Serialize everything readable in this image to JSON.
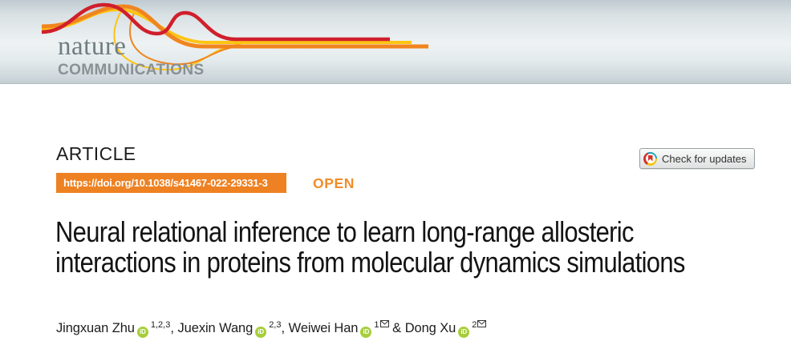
{
  "banner": {
    "nature": "nature",
    "communications": "COMMUNICATIONS"
  },
  "article": {
    "label": "ARTICLE",
    "doi": "https://doi.org/10.1038/s41467-022-29331-3",
    "open_label": "OPEN",
    "check_updates_label": "Check for updates",
    "title": "Neural relational inference to learn long-range allosteric interactions in proteins from molecular dynamics simulations"
  },
  "authors": [
    {
      "name": "Jingxuan Zhu",
      "sup": "1,2,3",
      "orcid": true,
      "corresponding": false,
      "sep_after": ", "
    },
    {
      "name": "Juexin Wang",
      "sup": "2,3",
      "orcid": true,
      "corresponding": false,
      "sep_after": ", "
    },
    {
      "name": "Weiwei Han",
      "sup": "1",
      "orcid": true,
      "corresponding": true,
      "sep_after": " & "
    },
    {
      "name": "Dong Xu",
      "sup": "2",
      "orcid": true,
      "corresponding": true,
      "sep_after": ""
    }
  ],
  "colors": {
    "doi_bar_orange": "#ee8122",
    "open_orange": "#f28c28",
    "orcid_green": "#a6ce39",
    "swoosh_red": "#d01f2b",
    "swoosh_orange": "#f0851f",
    "swoosh_yellow": "#fdc412",
    "brand_gray": "#6e7d82",
    "communications_gray": "#8a9196"
  }
}
